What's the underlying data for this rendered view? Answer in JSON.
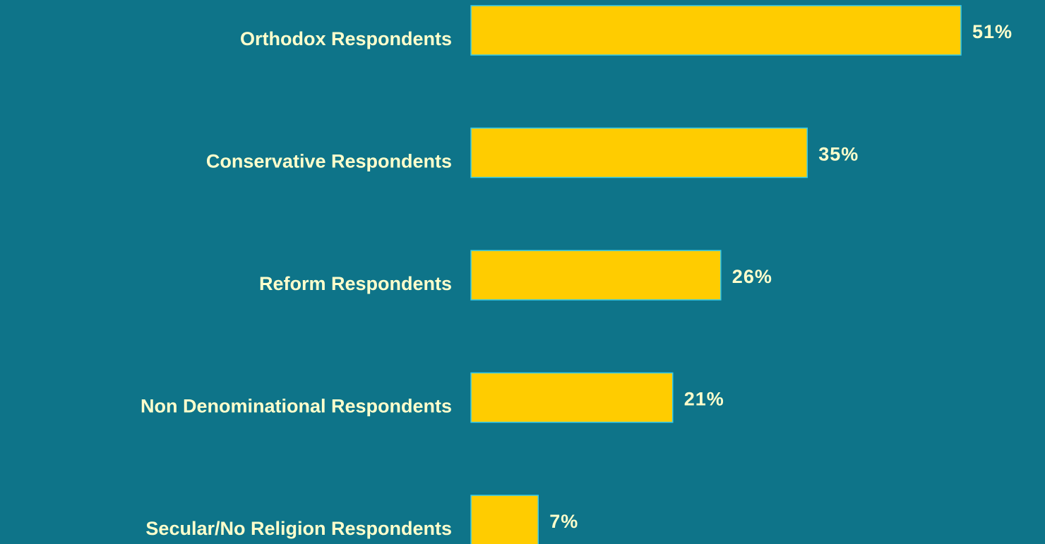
{
  "chart_data": {
    "type": "hbar",
    "categories": [
      "Orthodox Respondents",
      "Conservative Respondents",
      "Reform Respondents",
      "Non Denominational Respondents",
      "Secular/No Religion Respondents"
    ],
    "values": [
      51,
      35,
      26,
      21,
      7
    ],
    "value_labels": [
      "51%",
      "35%",
      "26%",
      "21%",
      "7%"
    ],
    "color": "#ffcc00"
  }
}
